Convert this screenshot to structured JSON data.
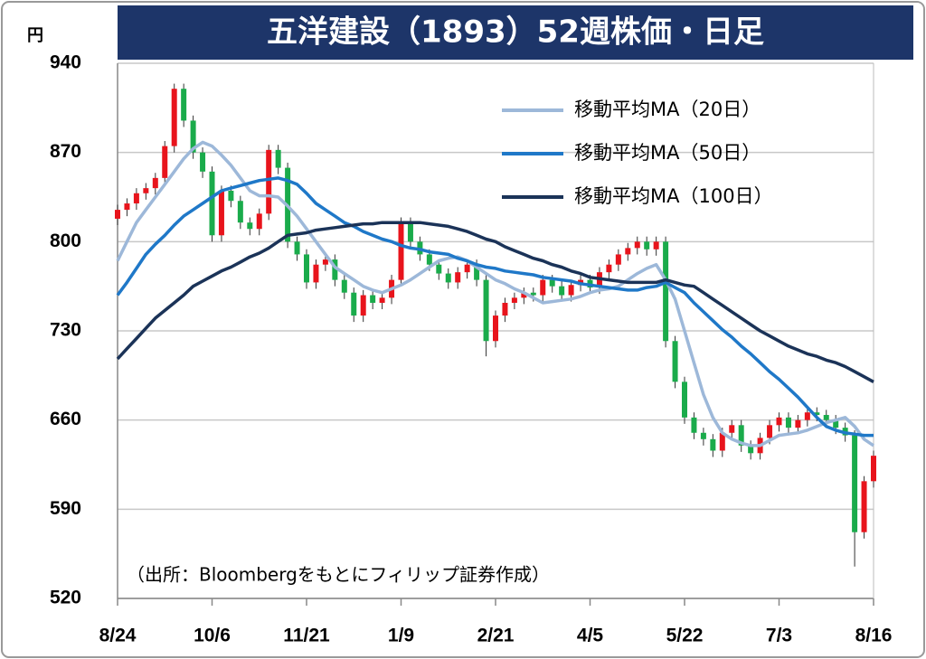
{
  "chart_data": {
    "type": "candlestick",
    "title": "五洋建設（1893）52週株価・日足",
    "y_unit": "円",
    "note": "（出所：Bloombergをもとにフィリップ証券作成）",
    "ylim": [
      520,
      940
    ],
    "yticks": [
      520,
      590,
      660,
      730,
      800,
      870,
      940
    ],
    "grid": true,
    "legend": "upper right",
    "up_color": "#e8141c",
    "down_color": "#1aab4b",
    "categories": [
      "8/24",
      null,
      null,
      null,
      null,
      null,
      null,
      null,
      null,
      null,
      "10/6",
      null,
      null,
      null,
      null,
      null,
      null,
      null,
      null,
      null,
      "11/21",
      null,
      null,
      null,
      null,
      null,
      null,
      null,
      null,
      null,
      "1/9",
      null,
      null,
      null,
      null,
      null,
      null,
      null,
      null,
      null,
      "2/21",
      null,
      null,
      null,
      null,
      null,
      null,
      null,
      null,
      null,
      "4/5",
      null,
      null,
      null,
      null,
      null,
      null,
      null,
      null,
      null,
      "5/22",
      null,
      null,
      null,
      null,
      null,
      null,
      null,
      null,
      null,
      "7/3",
      null,
      null,
      null,
      null,
      null,
      null,
      null,
      null,
      null,
      "8/16"
    ],
    "open": [
      818,
      825,
      830,
      838,
      842,
      850,
      875,
      920,
      895,
      870,
      855,
      805,
      840,
      832,
      815,
      810,
      822,
      872,
      858,
      800,
      790,
      768,
      782,
      786,
      770,
      760,
      742,
      758,
      752,
      756,
      770,
      815,
      800,
      790,
      782,
      775,
      768,
      776,
      782,
      770,
      722,
      742,
      752,
      756,
      760,
      758,
      770,
      765,
      758,
      766,
      770,
      764,
      776,
      782,
      790,
      795,
      800,
      794,
      800,
      722,
      690,
      662,
      650,
      645,
      636,
      650,
      656,
      640,
      634,
      646,
      656,
      662,
      654,
      660,
      666,
      664,
      660,
      654,
      648,
      572,
      612
    ],
    "high": [
      829,
      834,
      842,
      846,
      854,
      879,
      924,
      924,
      899,
      874,
      859,
      844,
      844,
      836,
      819,
      826,
      876,
      876,
      862,
      804,
      794,
      786,
      790,
      790,
      774,
      764,
      762,
      762,
      760,
      774,
      819,
      819,
      804,
      794,
      786,
      779,
      780,
      786,
      786,
      774,
      746,
      756,
      760,
      764,
      764,
      774,
      774,
      769,
      770,
      774,
      774,
      780,
      786,
      794,
      799,
      804,
      804,
      804,
      804,
      726,
      694,
      666,
      654,
      649,
      654,
      660,
      660,
      644,
      650,
      660,
      666,
      666,
      664,
      670,
      670,
      668,
      664,
      658,
      652,
      616,
      636
    ],
    "low": [
      813,
      820,
      825,
      833,
      837,
      845,
      870,
      890,
      865,
      850,
      800,
      800,
      827,
      810,
      805,
      805,
      817,
      853,
      795,
      785,
      763,
      763,
      777,
      765,
      755,
      737,
      737,
      747,
      747,
      751,
      765,
      795,
      785,
      777,
      770,
      763,
      763,
      771,
      765,
      710,
      717,
      737,
      747,
      751,
      753,
      753,
      760,
      753,
      753,
      761,
      759,
      759,
      771,
      777,
      785,
      790,
      789,
      789,
      717,
      685,
      657,
      645,
      640,
      631,
      631,
      645,
      635,
      629,
      629,
      641,
      651,
      649,
      649,
      655,
      659,
      655,
      649,
      643,
      545,
      567,
      607
    ],
    "close": [
      825,
      830,
      838,
      842,
      850,
      875,
      920,
      895,
      870,
      855,
      805,
      840,
      832,
      815,
      810,
      822,
      872,
      858,
      800,
      790,
      768,
      782,
      786,
      770,
      760,
      742,
      758,
      752,
      756,
      770,
      815,
      800,
      790,
      782,
      775,
      768,
      776,
      782,
      770,
      722,
      742,
      752,
      756,
      760,
      758,
      770,
      765,
      758,
      766,
      770,
      764,
      776,
      782,
      790,
      795,
      800,
      794,
      800,
      722,
      690,
      662,
      650,
      645,
      636,
      650,
      656,
      640,
      634,
      646,
      656,
      662,
      654,
      660,
      666,
      664,
      660,
      654,
      648,
      572,
      612,
      632
    ],
    "series": [
      {
        "name": "移動平均MA（20日）",
        "color": "#9db8d9",
        "values": [
          785,
          800,
          815,
          825,
          835,
          845,
          855,
          865,
          873,
          878,
          875,
          868,
          860,
          850,
          840,
          836,
          836,
          835,
          828,
          820,
          810,
          800,
          790,
          780,
          775,
          770,
          765,
          762,
          760,
          763,
          766,
          770,
          775,
          780,
          785,
          787,
          788,
          785,
          780,
          775,
          770,
          767,
          763,
          760,
          756,
          752,
          753,
          754,
          755,
          757,
          760,
          762,
          763,
          765,
          770,
          775,
          779,
          782,
          770,
          755,
          730,
          705,
          680,
          662,
          650,
          645,
          642,
          640,
          640,
          644,
          648,
          649,
          650,
          652,
          655,
          658,
          660,
          662,
          655,
          645,
          640
        ]
      },
      {
        "name": "移動平均MA（50日）",
        "color": "#1f78c8",
        "values": [
          758,
          768,
          779,
          790,
          798,
          805,
          813,
          820,
          825,
          830,
          835,
          840,
          842,
          844,
          846,
          848,
          849,
          850,
          848,
          845,
          838,
          830,
          825,
          820,
          815,
          812,
          808,
          805,
          802,
          800,
          797,
          795,
          794,
          792,
          791,
          790,
          787,
          785,
          782,
          780,
          779,
          777,
          776,
          775,
          774,
          772,
          771,
          770,
          769,
          767,
          766,
          765,
          764,
          763,
          762,
          762,
          764,
          765,
          768,
          764,
          760,
          752,
          745,
          738,
          731,
          725,
          718,
          712,
          705,
          698,
          692,
          685,
          678,
          670,
          662,
          655,
          652,
          650,
          649,
          648,
          648
        ]
      },
      {
        "name": "移動平均MA（100日）",
        "color": "#1b3358",
        "values": [
          708,
          716,
          724,
          732,
          740,
          746,
          752,
          758,
          765,
          769,
          773,
          777,
          780,
          784,
          788,
          791,
          795,
          800,
          805,
          806,
          807,
          809,
          810,
          811,
          812,
          813,
          814,
          814,
          815,
          815,
          815,
          815,
          815,
          814,
          813,
          812,
          810,
          808,
          805,
          802,
          800,
          796,
          793,
          790,
          787,
          785,
          782,
          780,
          777,
          775,
          772,
          771,
          770,
          769,
          768,
          768,
          768,
          768,
          770,
          768,
          766,
          765,
          760,
          755,
          750,
          745,
          740,
          735,
          730,
          726,
          722,
          718,
          715,
          712,
          710,
          707,
          705,
          702,
          698,
          694,
          690
        ]
      }
    ]
  }
}
